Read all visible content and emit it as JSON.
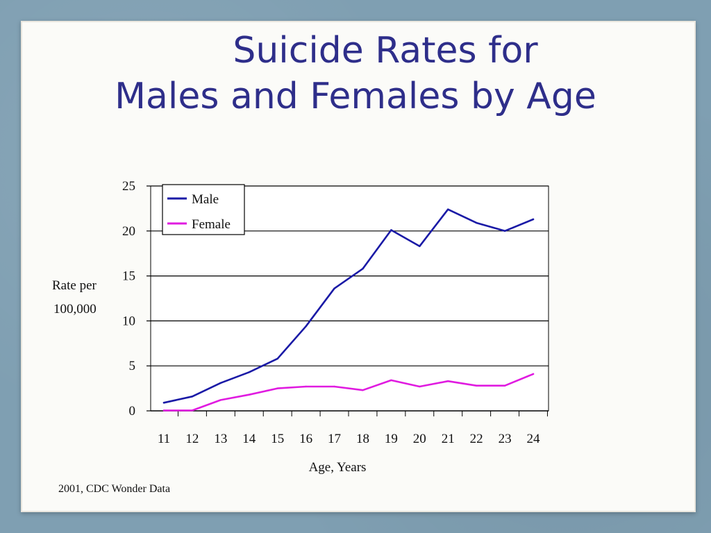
{
  "slide": {
    "title_line1": "Suicide Rates for",
    "title_line2": "Males and Females by Age",
    "source": "2001, CDC Wonder Data",
    "colors": {
      "title": "#2e2e8a",
      "background": "#7f9fb2",
      "paper": "#fbfbf8"
    }
  },
  "chart_data": {
    "type": "line",
    "title": "",
    "xlabel": "Age, Years",
    "ylabel": "Rate per 100,000",
    "ylabel_lines": [
      "Rate per",
      "100,000"
    ],
    "x": [
      11,
      12,
      13,
      14,
      15,
      16,
      17,
      18,
      19,
      20,
      21,
      22,
      23,
      24
    ],
    "ylim": [
      0,
      25
    ],
    "yticks": [
      0,
      5,
      10,
      15,
      20,
      25
    ],
    "grid": true,
    "legend_position": "top-left",
    "series": [
      {
        "name": "Male",
        "color": "#1a1aa6",
        "values": [
          0.9,
          1.6,
          3.1,
          4.3,
          5.8,
          9.4,
          13.6,
          15.8,
          20.1,
          18.3,
          22.4,
          20.9,
          20.0,
          21.3
        ]
      },
      {
        "name": "Female",
        "color": "#e01be0",
        "values": [
          0.05,
          0.05,
          1.2,
          1.8,
          2.5,
          2.7,
          2.7,
          2.3,
          3.4,
          2.7,
          3.3,
          2.8,
          2.8,
          4.1
        ]
      }
    ]
  }
}
